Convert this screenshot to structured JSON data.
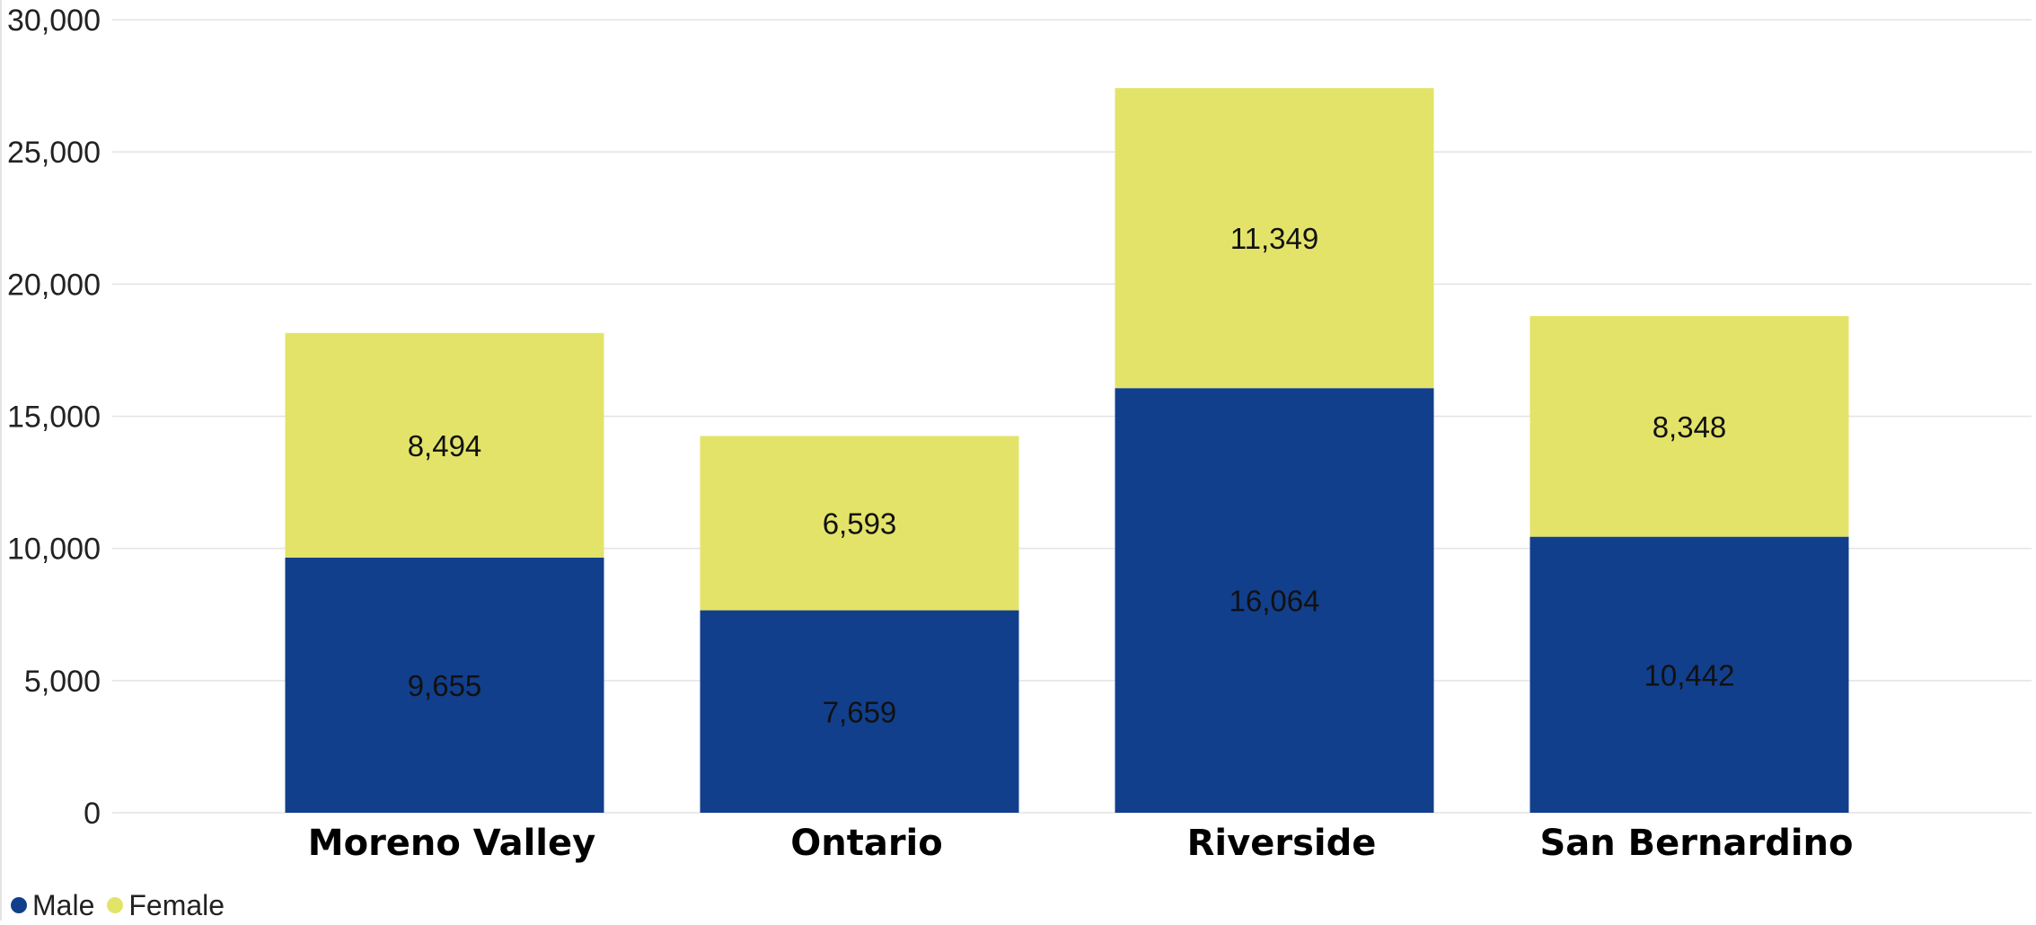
{
  "chart_data": {
    "type": "bar",
    "stacked": true,
    "categories": [
      "Moreno Valley",
      "Ontario",
      "Riverside",
      "San Bernardino"
    ],
    "series": [
      {
        "name": "Male",
        "color": "#123f8c",
        "values": [
          9655,
          7659,
          16064,
          10442
        ],
        "labels": [
          "9,655",
          "7,659",
          "16,064",
          "10,442"
        ]
      },
      {
        "name": "Female",
        "color": "#e3e36a",
        "values": [
          8494,
          6593,
          11349,
          8348
        ],
        "labels": [
          "8,494",
          "6,593",
          "11,349",
          "8,348"
        ]
      }
    ],
    "y_ticks": [
      "0",
      "5,000",
      "10,000",
      "15,000",
      "20,000",
      "25,000",
      "30,000"
    ],
    "ylim": [
      0,
      30000
    ],
    "grid": true,
    "legend_position": "bottom-left"
  }
}
